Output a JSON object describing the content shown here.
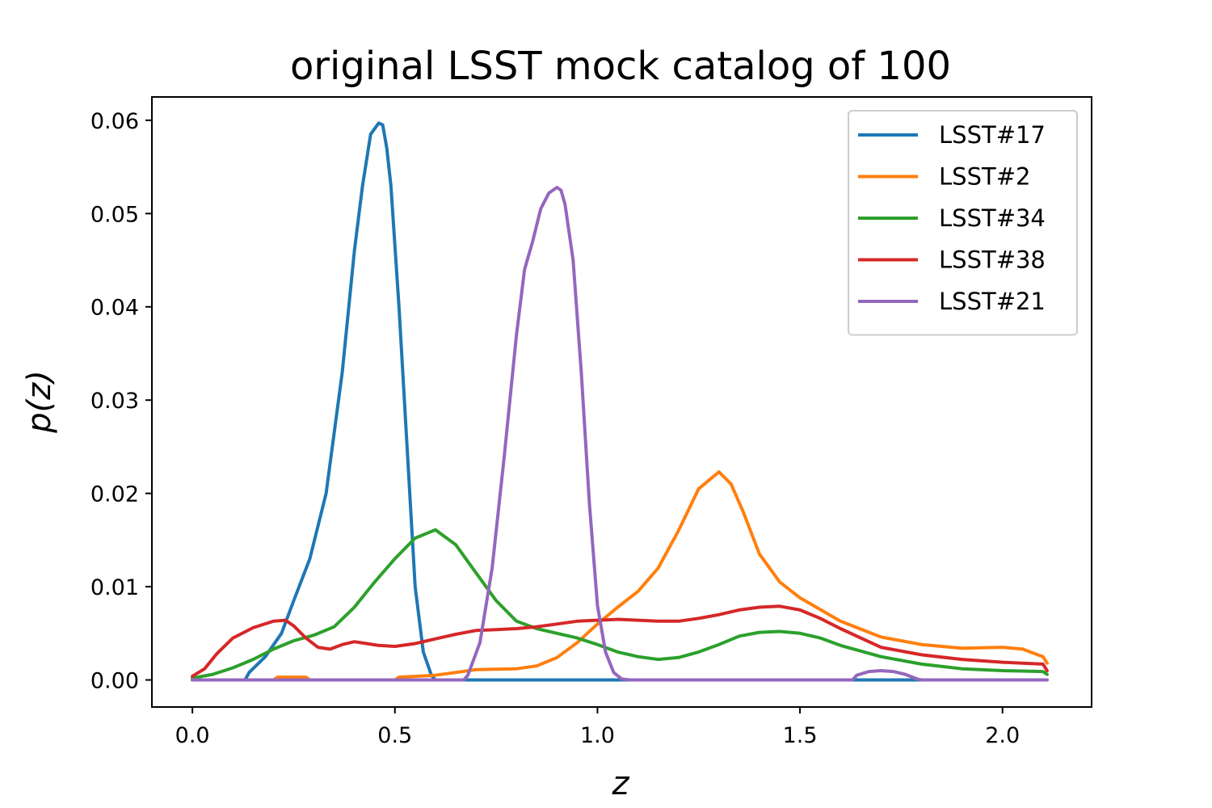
{
  "chart_data": {
    "type": "line",
    "title": "original LSST mock catalog of 100",
    "xlabel": "z",
    "ylabel": "p(z)",
    "xlim": [
      -0.1,
      2.22
    ],
    "ylim": [
      -0.0029,
      0.0625
    ],
    "xticks": [
      0.0,
      0.5,
      1.0,
      1.5,
      2.0
    ],
    "xtick_labels": [
      "0.0",
      "0.5",
      "1.0",
      "1.5",
      "2.0"
    ],
    "yticks": [
      0.0,
      0.01,
      0.02,
      0.03,
      0.04,
      0.05,
      0.06
    ],
    "ytick_labels": [
      "0.00",
      "0.01",
      "0.02",
      "0.03",
      "0.04",
      "0.05",
      "0.06"
    ],
    "grid": false,
    "legend_position": "top-right",
    "series": [
      {
        "name": "LSST#17",
        "color": "#1f77b4",
        "x": [
          0.0,
          0.13,
          0.14,
          0.18,
          0.22,
          0.25,
          0.29,
          0.33,
          0.37,
          0.4,
          0.42,
          0.44,
          0.46,
          0.47,
          0.48,
          0.49,
          0.51,
          0.53,
          0.55,
          0.57,
          0.59,
          0.6,
          0.62,
          2.11
        ],
        "y": [
          0.0,
          0.0,
          0.0008,
          0.0025,
          0.005,
          0.0085,
          0.013,
          0.02,
          0.033,
          0.046,
          0.053,
          0.0585,
          0.0597,
          0.0595,
          0.057,
          0.053,
          0.04,
          0.025,
          0.01,
          0.003,
          0.0005,
          0.0,
          0.0,
          0.0
        ]
      },
      {
        "name": "LSST#2",
        "color": "#ff7f0e",
        "x": [
          0.0,
          0.2,
          0.21,
          0.28,
          0.29,
          0.5,
          0.51,
          0.6,
          0.7,
          0.8,
          0.85,
          0.9,
          0.95,
          1.0,
          1.05,
          1.1,
          1.15,
          1.2,
          1.25,
          1.3,
          1.33,
          1.36,
          1.4,
          1.45,
          1.5,
          1.6,
          1.7,
          1.8,
          1.9,
          2.0,
          2.05,
          2.1,
          2.11
        ],
        "y": [
          0.0,
          0.0,
          0.0003,
          0.0003,
          0.0,
          0.0,
          0.0003,
          0.0005,
          0.0011,
          0.0012,
          0.0015,
          0.0024,
          0.004,
          0.006,
          0.0078,
          0.0095,
          0.012,
          0.016,
          0.0205,
          0.0223,
          0.021,
          0.018,
          0.0135,
          0.0105,
          0.0088,
          0.0063,
          0.0046,
          0.0038,
          0.0034,
          0.0035,
          0.0033,
          0.0025,
          0.0018
        ]
      },
      {
        "name": "LSST#34",
        "color": "#2ca02c",
        "x": [
          0.0,
          0.05,
          0.1,
          0.15,
          0.2,
          0.25,
          0.3,
          0.35,
          0.4,
          0.45,
          0.5,
          0.55,
          0.6,
          0.65,
          0.7,
          0.75,
          0.8,
          0.85,
          0.9,
          0.95,
          1.0,
          1.05,
          1.1,
          1.15,
          1.2,
          1.25,
          1.3,
          1.35,
          1.4,
          1.45,
          1.5,
          1.55,
          1.6,
          1.7,
          1.8,
          1.9,
          2.0,
          2.1,
          2.11
        ],
        "y": [
          0.0002,
          0.0006,
          0.0013,
          0.0022,
          0.0033,
          0.0042,
          0.0048,
          0.0057,
          0.0078,
          0.0105,
          0.013,
          0.0152,
          0.0161,
          0.0145,
          0.0115,
          0.0085,
          0.0063,
          0.0055,
          0.005,
          0.0045,
          0.0038,
          0.003,
          0.0025,
          0.0022,
          0.0024,
          0.003,
          0.0038,
          0.0047,
          0.0051,
          0.0052,
          0.005,
          0.0045,
          0.0037,
          0.0025,
          0.0017,
          0.0012,
          0.001,
          0.0009,
          0.0006
        ]
      },
      {
        "name": "LSST#38",
        "color": "#d62728",
        "x": [
          0.0,
          0.03,
          0.06,
          0.1,
          0.15,
          0.2,
          0.23,
          0.25,
          0.28,
          0.31,
          0.34,
          0.37,
          0.4,
          0.43,
          0.46,
          0.5,
          0.55,
          0.6,
          0.65,
          0.7,
          0.75,
          0.8,
          0.85,
          0.9,
          0.95,
          1.0,
          1.05,
          1.1,
          1.15,
          1.2,
          1.25,
          1.3,
          1.35,
          1.4,
          1.45,
          1.5,
          1.55,
          1.6,
          1.65,
          1.7,
          1.8,
          1.9,
          2.0,
          2.1,
          2.11
        ],
        "y": [
          0.0004,
          0.0012,
          0.0028,
          0.0045,
          0.0056,
          0.0063,
          0.0064,
          0.0058,
          0.0045,
          0.0035,
          0.0033,
          0.0038,
          0.0041,
          0.0039,
          0.0037,
          0.0036,
          0.0039,
          0.0044,
          0.0049,
          0.0053,
          0.0054,
          0.0055,
          0.0057,
          0.006,
          0.0063,
          0.0064,
          0.0065,
          0.0064,
          0.0063,
          0.0063,
          0.0066,
          0.007,
          0.0075,
          0.0078,
          0.0079,
          0.0075,
          0.0066,
          0.0055,
          0.0045,
          0.0035,
          0.0027,
          0.0022,
          0.0019,
          0.0017,
          0.001
        ]
      },
      {
        "name": "LSST#21",
        "color": "#9467bd",
        "x": [
          0.0,
          0.67,
          0.68,
          0.71,
          0.74,
          0.77,
          0.8,
          0.82,
          0.84,
          0.86,
          0.88,
          0.9,
          0.91,
          0.92,
          0.94,
          0.96,
          0.98,
          1.0,
          1.02,
          1.04,
          1.06,
          1.08,
          1.09,
          1.63,
          1.64,
          1.67,
          1.7,
          1.73,
          1.76,
          1.79,
          1.8,
          2.11
        ],
        "y": [
          0.0,
          0.0,
          0.0005,
          0.004,
          0.012,
          0.024,
          0.037,
          0.044,
          0.047,
          0.0505,
          0.0522,
          0.0528,
          0.0525,
          0.051,
          0.045,
          0.033,
          0.019,
          0.008,
          0.003,
          0.0008,
          0.0001,
          0.0,
          0.0,
          0.0,
          0.0005,
          0.0009,
          0.001,
          0.0009,
          0.0006,
          0.0001,
          0.0,
          0.0
        ]
      }
    ]
  }
}
